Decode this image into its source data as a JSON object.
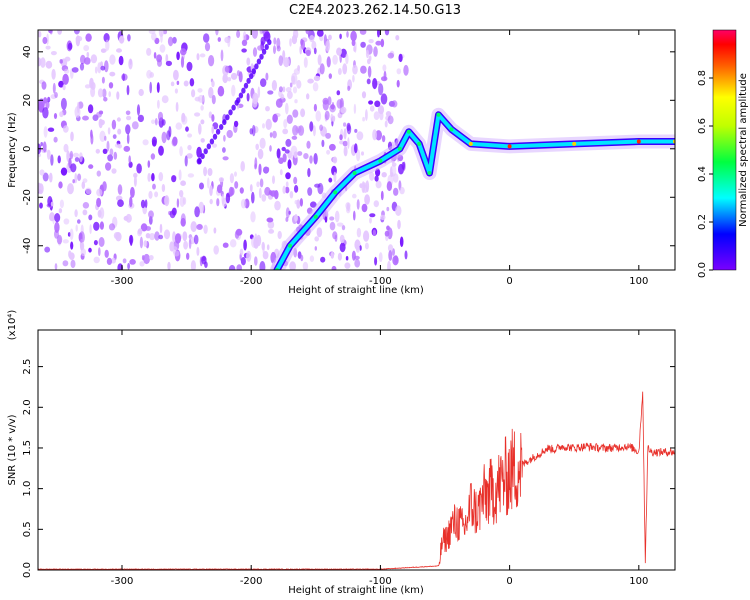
{
  "figure": {
    "title": "C2E4.2023.262.14.50.G13"
  },
  "chart_data": [
    {
      "type": "heatmap",
      "xlabel": "Height of straight line (km)",
      "ylabel": "Frequency (Hz)",
      "xlim": [
        -365,
        128
      ],
      "ylim": [
        -50,
        49
      ],
      "xticks": [
        -300,
        -200,
        -100,
        0,
        100
      ],
      "yticks": [
        -40,
        -20,
        0,
        20,
        40
      ],
      "colorbar": {
        "label": "Normalized spectral amplitude",
        "range": [
          0.0,
          1.0
        ],
        "ticks": [
          0.0,
          0.2,
          0.4,
          0.6,
          0.8
        ],
        "colormap": "rainbow (violet to red/magenta)"
      },
      "noise_region_x": [
        -365,
        -80
      ],
      "main_trace": [
        {
          "x": -180,
          "y": -50
        },
        {
          "x": -170,
          "y": -40
        },
        {
          "x": -150,
          "y": -28
        },
        {
          "x": -135,
          "y": -18
        },
        {
          "x": -120,
          "y": -10
        },
        {
          "x": -100,
          "y": -5
        },
        {
          "x": -85,
          "y": 0
        },
        {
          "x": -78,
          "y": 7
        },
        {
          "x": -70,
          "y": 2
        },
        {
          "x": -62,
          "y": -10
        },
        {
          "x": -55,
          "y": 14
        },
        {
          "x": -45,
          "y": 8
        },
        {
          "x": -30,
          "y": 2
        },
        {
          "x": 0,
          "y": 1
        },
        {
          "x": 50,
          "y": 2
        },
        {
          "x": 100,
          "y": 3
        },
        {
          "x": 128,
          "y": 3
        }
      ],
      "faint_trace": [
        {
          "x": -240,
          "y": -5
        },
        {
          "x": -210,
          "y": 20
        },
        {
          "x": -185,
          "y": 45
        }
      ]
    },
    {
      "type": "line",
      "xlabel": "Height of straight line (km)",
      "ylabel": "SNR (10 * v/v)",
      "ymultiplier": "(x10⁴)",
      "xlim": [
        -365,
        128
      ],
      "ylim": [
        0,
        2.95
      ],
      "xticks": [
        -300,
        -200,
        -100,
        0,
        100
      ],
      "yticks": [
        0.0,
        0.5,
        1.0,
        1.5,
        2.0,
        2.5
      ],
      "series": [
        {
          "color": "#e8302a",
          "x": [
            -365,
            -200,
            -100,
            -55,
            -52,
            -48,
            -45,
            -40,
            -35,
            -30,
            -25,
            -20,
            -15,
            -10,
            -5,
            0,
            5,
            10,
            15,
            20,
            25,
            30,
            35,
            40,
            50,
            60,
            70,
            80,
            90,
            95,
            100,
            103,
            105,
            107,
            110,
            115,
            120,
            128
          ],
          "y": [
            0.01,
            0.01,
            0.01,
            0.05,
            0.35,
            0.4,
            0.55,
            0.6,
            0.5,
            0.8,
            0.7,
            0.9,
            0.95,
            1.0,
            1.1,
            1.2,
            1.25,
            1.3,
            1.35,
            1.4,
            1.45,
            1.5,
            1.48,
            1.52,
            1.5,
            1.52,
            1.5,
            1.5,
            1.52,
            1.5,
            1.45,
            2.2,
            0.1,
            1.5,
            1.45,
            1.45,
            1.45,
            1.45
          ]
        }
      ]
    }
  ]
}
